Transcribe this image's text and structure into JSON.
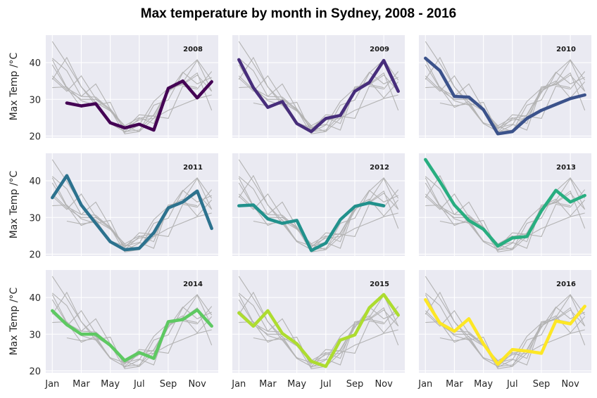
{
  "chart_data": {
    "type": "line",
    "title": "Max temperature by month in Sydney, 2008 - 2016",
    "ylabel": "Max Temp /°C",
    "ylim": [
      19.5,
      47.5
    ],
    "yticks": [
      20,
      30,
      40
    ],
    "x": [
      1,
      2,
      3,
      4,
      5,
      6,
      7,
      8,
      9,
      10,
      11,
      12
    ],
    "xticks": [
      1,
      3,
      5,
      7,
      9,
      11
    ],
    "xtick_labels": [
      "Jan",
      "Mar",
      "May",
      "Jul",
      "Sep",
      "Nov"
    ],
    "grid": true,
    "background_color": "#eaeaf2",
    "background_line_color": "#b3b3b3",
    "series": [
      {
        "name": "2008",
        "color": "#440154",
        "values": [
          null,
          29.0,
          28.2,
          28.8,
          23.6,
          22.2,
          23.2,
          21.6,
          33.0,
          35.0,
          30.4,
          34.8
        ]
      },
      {
        "name": "2009",
        "color": "#472d7b",
        "values": [
          40.8,
          33.2,
          27.8,
          29.4,
          23.4,
          21.2,
          24.8,
          25.6,
          32.2,
          34.6,
          40.6,
          32.2
        ]
      },
      {
        "name": "2010",
        "color": "#3b528b",
        "values": [
          41.2,
          37.8,
          30.8,
          30.6,
          27.2,
          20.6,
          21.2,
          24.8,
          27.0,
          28.6,
          30.2,
          31.2
        ]
      },
      {
        "name": "2011",
        "color": "#2c728e",
        "values": [
          35.4,
          41.4,
          33.4,
          28.4,
          23.4,
          21.2,
          21.6,
          25.8,
          32.6,
          34.2,
          37.2,
          27.0
        ]
      },
      {
        "name": "2012",
        "color": "#21918c",
        "values": [
          33.2,
          33.4,
          29.6,
          28.4,
          29.2,
          21.0,
          23.0,
          29.4,
          33.0,
          34.0,
          33.2,
          null
        ]
      },
      {
        "name": "2013",
        "color": "#28ae80",
        "values": [
          45.8,
          39.8,
          33.4,
          29.2,
          26.8,
          22.2,
          24.4,
          24.8,
          31.8,
          37.4,
          34.2,
          36.0
        ]
      },
      {
        "name": "2014",
        "color": "#5ec962",
        "values": [
          36.4,
          32.6,
          30.0,
          30.0,
          27.0,
          22.8,
          25.0,
          23.4,
          33.4,
          34.0,
          36.6,
          32.2
        ]
      },
      {
        "name": "2015",
        "color": "#addc30",
        "values": [
          35.8,
          32.2,
          36.4,
          30.2,
          27.4,
          22.6,
          21.2,
          28.4,
          29.8,
          37.2,
          40.8,
          35.2
        ]
      },
      {
        "name": "2016",
        "color": "#fde725",
        "values": [
          39.4,
          33.0,
          30.8,
          34.2,
          27.4,
          21.8,
          25.8,
          25.4,
          24.8,
          33.6,
          32.8,
          37.6
        ]
      }
    ]
  }
}
